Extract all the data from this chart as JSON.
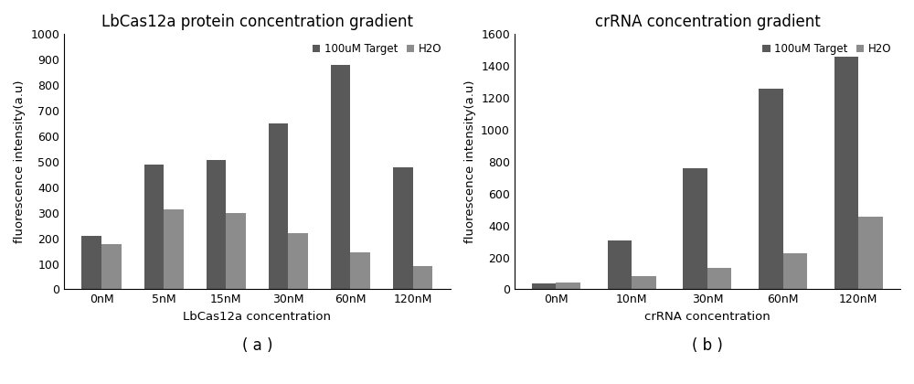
{
  "chart_a": {
    "title": "LbCas12a protein concentration gradient",
    "xlabel": "LbCas12a concentration",
    "ylabel": "fluorescence intensity(a.u)",
    "categories": [
      "0nM",
      "5nM",
      "15nM",
      "30nM",
      "60nM",
      "120nM"
    ],
    "target_values": [
      210,
      490,
      505,
      650,
      880,
      478
    ],
    "h2o_values": [
      178,
      315,
      300,
      220,
      145,
      90
    ],
    "legend_labels": [
      "100uM Target",
      "H2O"
    ],
    "color_target": "#595959",
    "color_h2o": "#8c8c8c",
    "ylim": [
      0,
      1000
    ],
    "yticks": [
      0,
      100,
      200,
      300,
      400,
      500,
      600,
      700,
      800,
      900,
      1000
    ],
    "legend_loc": "upper right",
    "label": "( a )"
  },
  "chart_b": {
    "title": "crRNA concentration gradient",
    "xlabel": "crRNA concentration",
    "ylabel": "fluorescence intensity(a.u)",
    "categories": [
      "0nM",
      "10nM",
      "30nM",
      "60nM",
      "120nM"
    ],
    "target_values": [
      35,
      305,
      760,
      1260,
      1460
    ],
    "h2o_values": [
      40,
      82,
      135,
      225,
      455
    ],
    "legend_labels": [
      "100uM Target",
      "H2O"
    ],
    "color_target": "#595959",
    "color_h2o": "#8c8c8c",
    "ylim": [
      0,
      1600
    ],
    "yticks": [
      0,
      200,
      400,
      600,
      800,
      1000,
      1200,
      1400,
      1600
    ],
    "legend_loc": "upper right",
    "label": "( b )"
  },
  "background_color": "#ffffff",
  "bar_width": 0.32,
  "title_fontsize": 12,
  "axis_label_fontsize": 9.5,
  "tick_fontsize": 9,
  "legend_fontsize": 8.5,
  "sublabel_fontsize": 12
}
